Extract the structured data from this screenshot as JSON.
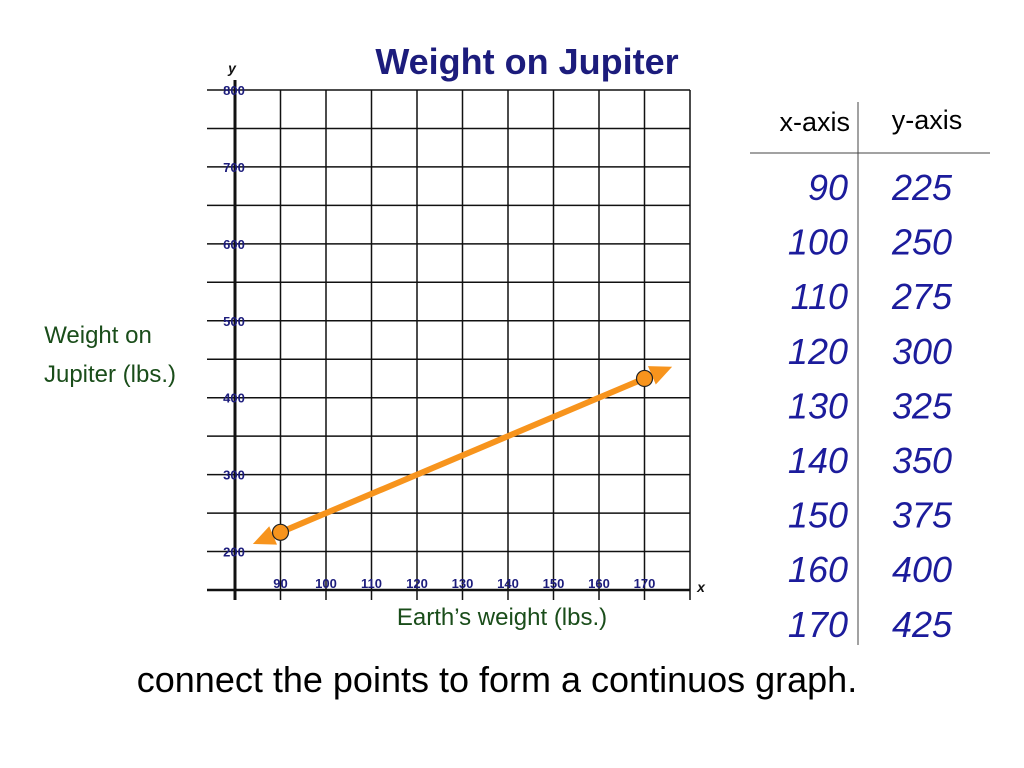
{
  "chart_data": {
    "type": "line",
    "title": "Weight on Jupiter",
    "x_symbol": "x",
    "y_symbol": "y",
    "x_label": "Earth’s weight (lbs.)",
    "y_label": [
      "Weight on",
      "Jupiter (lbs.)"
    ],
    "series": [
      {
        "name": "Weight on Jupiter",
        "color": "#f7941d",
        "x": [
          90,
          170
        ],
        "values": [
          225,
          425
        ]
      }
    ],
    "xlim": [
      80,
      180
    ],
    "xticks": [
      90,
      100,
      110,
      120,
      130,
      140,
      150,
      160,
      170
    ],
    "ylim": [
      150,
      800
    ],
    "yticks": [
      200,
      300,
      400,
      500,
      600,
      700,
      800
    ],
    "y_minor_ticks": [
      250,
      350,
      450,
      550,
      650,
      750
    ],
    "grid": true
  },
  "table": {
    "headers": [
      "x-axis",
      "y-axis"
    ],
    "rows": [
      [
        90,
        225
      ],
      [
        100,
        250
      ],
      [
        110,
        275
      ],
      [
        120,
        300
      ],
      [
        130,
        325
      ],
      [
        140,
        350
      ],
      [
        150,
        375
      ],
      [
        160,
        400
      ],
      [
        170,
        425
      ]
    ]
  },
  "caption": "connect the points to form a continuos graph."
}
